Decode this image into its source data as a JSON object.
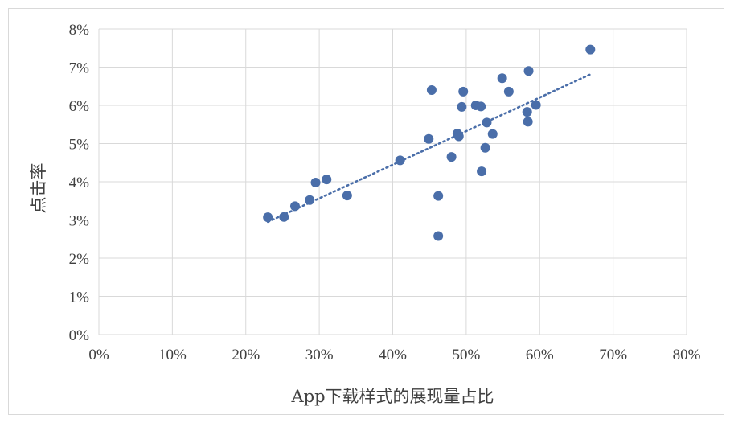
{
  "chart_data": {
    "type": "scatter",
    "xlabel": "App下载样式的展现量占比",
    "ylabel": "点击率",
    "xlim": [
      0,
      80
    ],
    "ylim": [
      0,
      8
    ],
    "x_ticks": [
      "0%",
      "10%",
      "20%",
      "30%",
      "40%",
      "50%",
      "60%",
      "70%",
      "80%"
    ],
    "y_ticks": [
      "0%",
      "1%",
      "2%",
      "3%",
      "4%",
      "5%",
      "6%",
      "7%",
      "8%"
    ],
    "grid": true,
    "legend": "none",
    "marker_color": "#4a6ea9",
    "trendline": {
      "type": "linear",
      "style": "dotted",
      "color": "#4a6ea9",
      "x": [
        23,
        67
      ],
      "y": [
        2.95,
        6.82
      ]
    },
    "series": [
      {
        "points": [
          {
            "x": 23.0,
            "y": 3.07
          },
          {
            "x": 25.2,
            "y": 3.08
          },
          {
            "x": 26.7,
            "y": 3.36
          },
          {
            "x": 28.7,
            "y": 3.52
          },
          {
            "x": 29.5,
            "y": 3.98
          },
          {
            "x": 31.0,
            "y": 4.06
          },
          {
            "x": 33.8,
            "y": 3.64
          },
          {
            "x": 41.0,
            "y": 4.56
          },
          {
            "x": 44.9,
            "y": 5.12
          },
          {
            "x": 45.3,
            "y": 6.4
          },
          {
            "x": 46.2,
            "y": 3.63
          },
          {
            "x": 46.2,
            "y": 2.58
          },
          {
            "x": 48.0,
            "y": 4.65
          },
          {
            "x": 48.8,
            "y": 5.26
          },
          {
            "x": 49.0,
            "y": 5.19
          },
          {
            "x": 49.4,
            "y": 5.96
          },
          {
            "x": 49.6,
            "y": 6.36
          },
          {
            "x": 51.3,
            "y": 6.0
          },
          {
            "x": 52.0,
            "y": 5.97
          },
          {
            "x": 52.1,
            "y": 4.27
          },
          {
            "x": 52.6,
            "y": 4.89
          },
          {
            "x": 52.8,
            "y": 5.55
          },
          {
            "x": 53.6,
            "y": 5.25
          },
          {
            "x": 54.9,
            "y": 6.71
          },
          {
            "x": 55.8,
            "y": 6.36
          },
          {
            "x": 58.3,
            "y": 5.83
          },
          {
            "x": 58.4,
            "y": 5.57
          },
          {
            "x": 58.5,
            "y": 6.9
          },
          {
            "x": 59.5,
            "y": 6.01
          },
          {
            "x": 66.9,
            "y": 7.46
          }
        ]
      }
    ]
  }
}
